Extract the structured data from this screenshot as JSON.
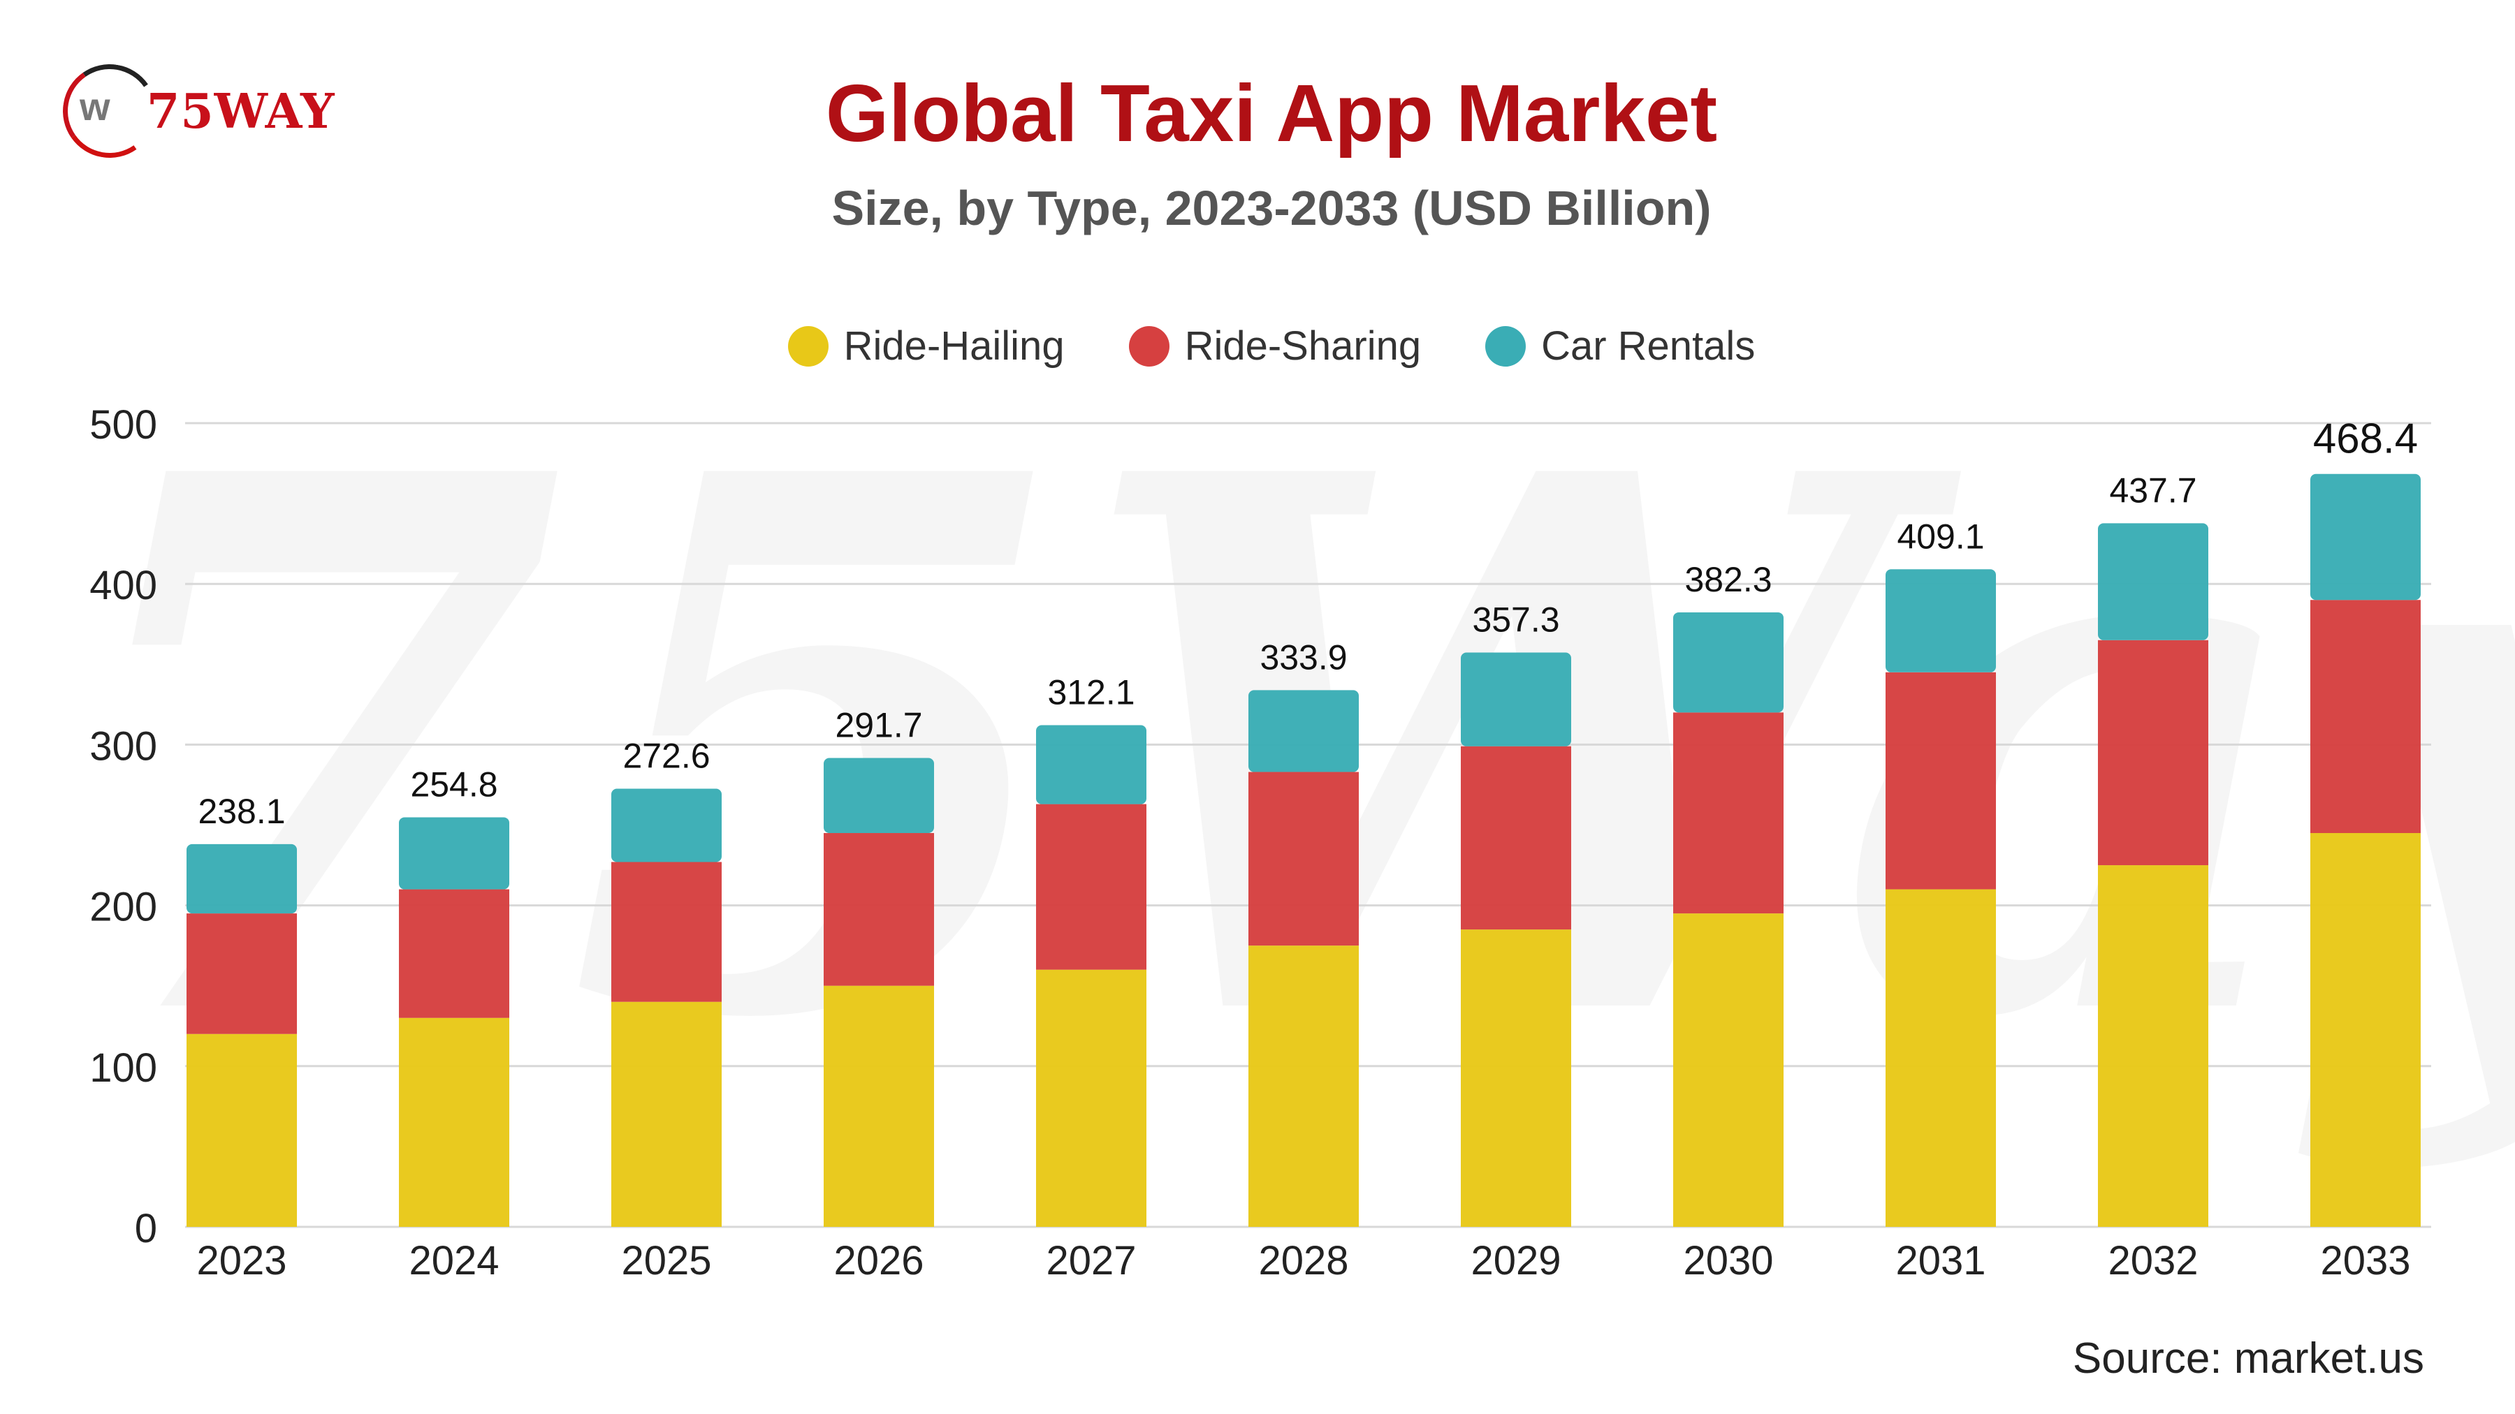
{
  "logo": {
    "text": "75WAY"
  },
  "watermark": "75Way",
  "source": "Source: market.us",
  "colors": {
    "ride_hailing": "#e8c818",
    "ride_sharing": "#d64040",
    "car_rentals": "#3aadb5",
    "title": "#b01015"
  },
  "chart_data": {
    "type": "bar",
    "stacked": true,
    "title": "Global Taxi App Market",
    "subtitle": "Size, by Type, 2023-2033 (USD Billion)",
    "xlabel": "",
    "ylabel": "",
    "ylim": [
      0,
      500
    ],
    "yticks": [
      "0",
      "100",
      "200",
      "300",
      "400",
      "500"
    ],
    "grid": true,
    "legend_position": "top-center",
    "categories": [
      "2023",
      "2024",
      "2025",
      "2026",
      "2027",
      "2028",
      "2029",
      "2030",
      "2031",
      "2032",
      "2033"
    ],
    "series": [
      {
        "name": "Ride-Hailing",
        "color": "#e8c818",
        "values": [
          120,
          130,
          140,
          150,
          160,
          175,
          185,
          195,
          210,
          225,
          245
        ]
      },
      {
        "name": "Ride-Sharing",
        "color": "#d64040",
        "values": [
          75,
          80,
          87,
          95,
          103,
          108,
          114,
          125,
          135,
          140,
          145
        ]
      },
      {
        "name": "Car Rentals",
        "color": "#3aadb5",
        "values": [
          43.1,
          44.8,
          45.6,
          46.7,
          49.1,
          50.9,
          58.3,
          62.3,
          64.1,
          72.7,
          78.4
        ]
      }
    ],
    "totals": [
      "238.1",
      "254.8",
      "272.6",
      "291.7",
      "312.1",
      "333.9",
      "357.3",
      "382.3",
      "409.1",
      "437.7",
      "468.4"
    ]
  }
}
